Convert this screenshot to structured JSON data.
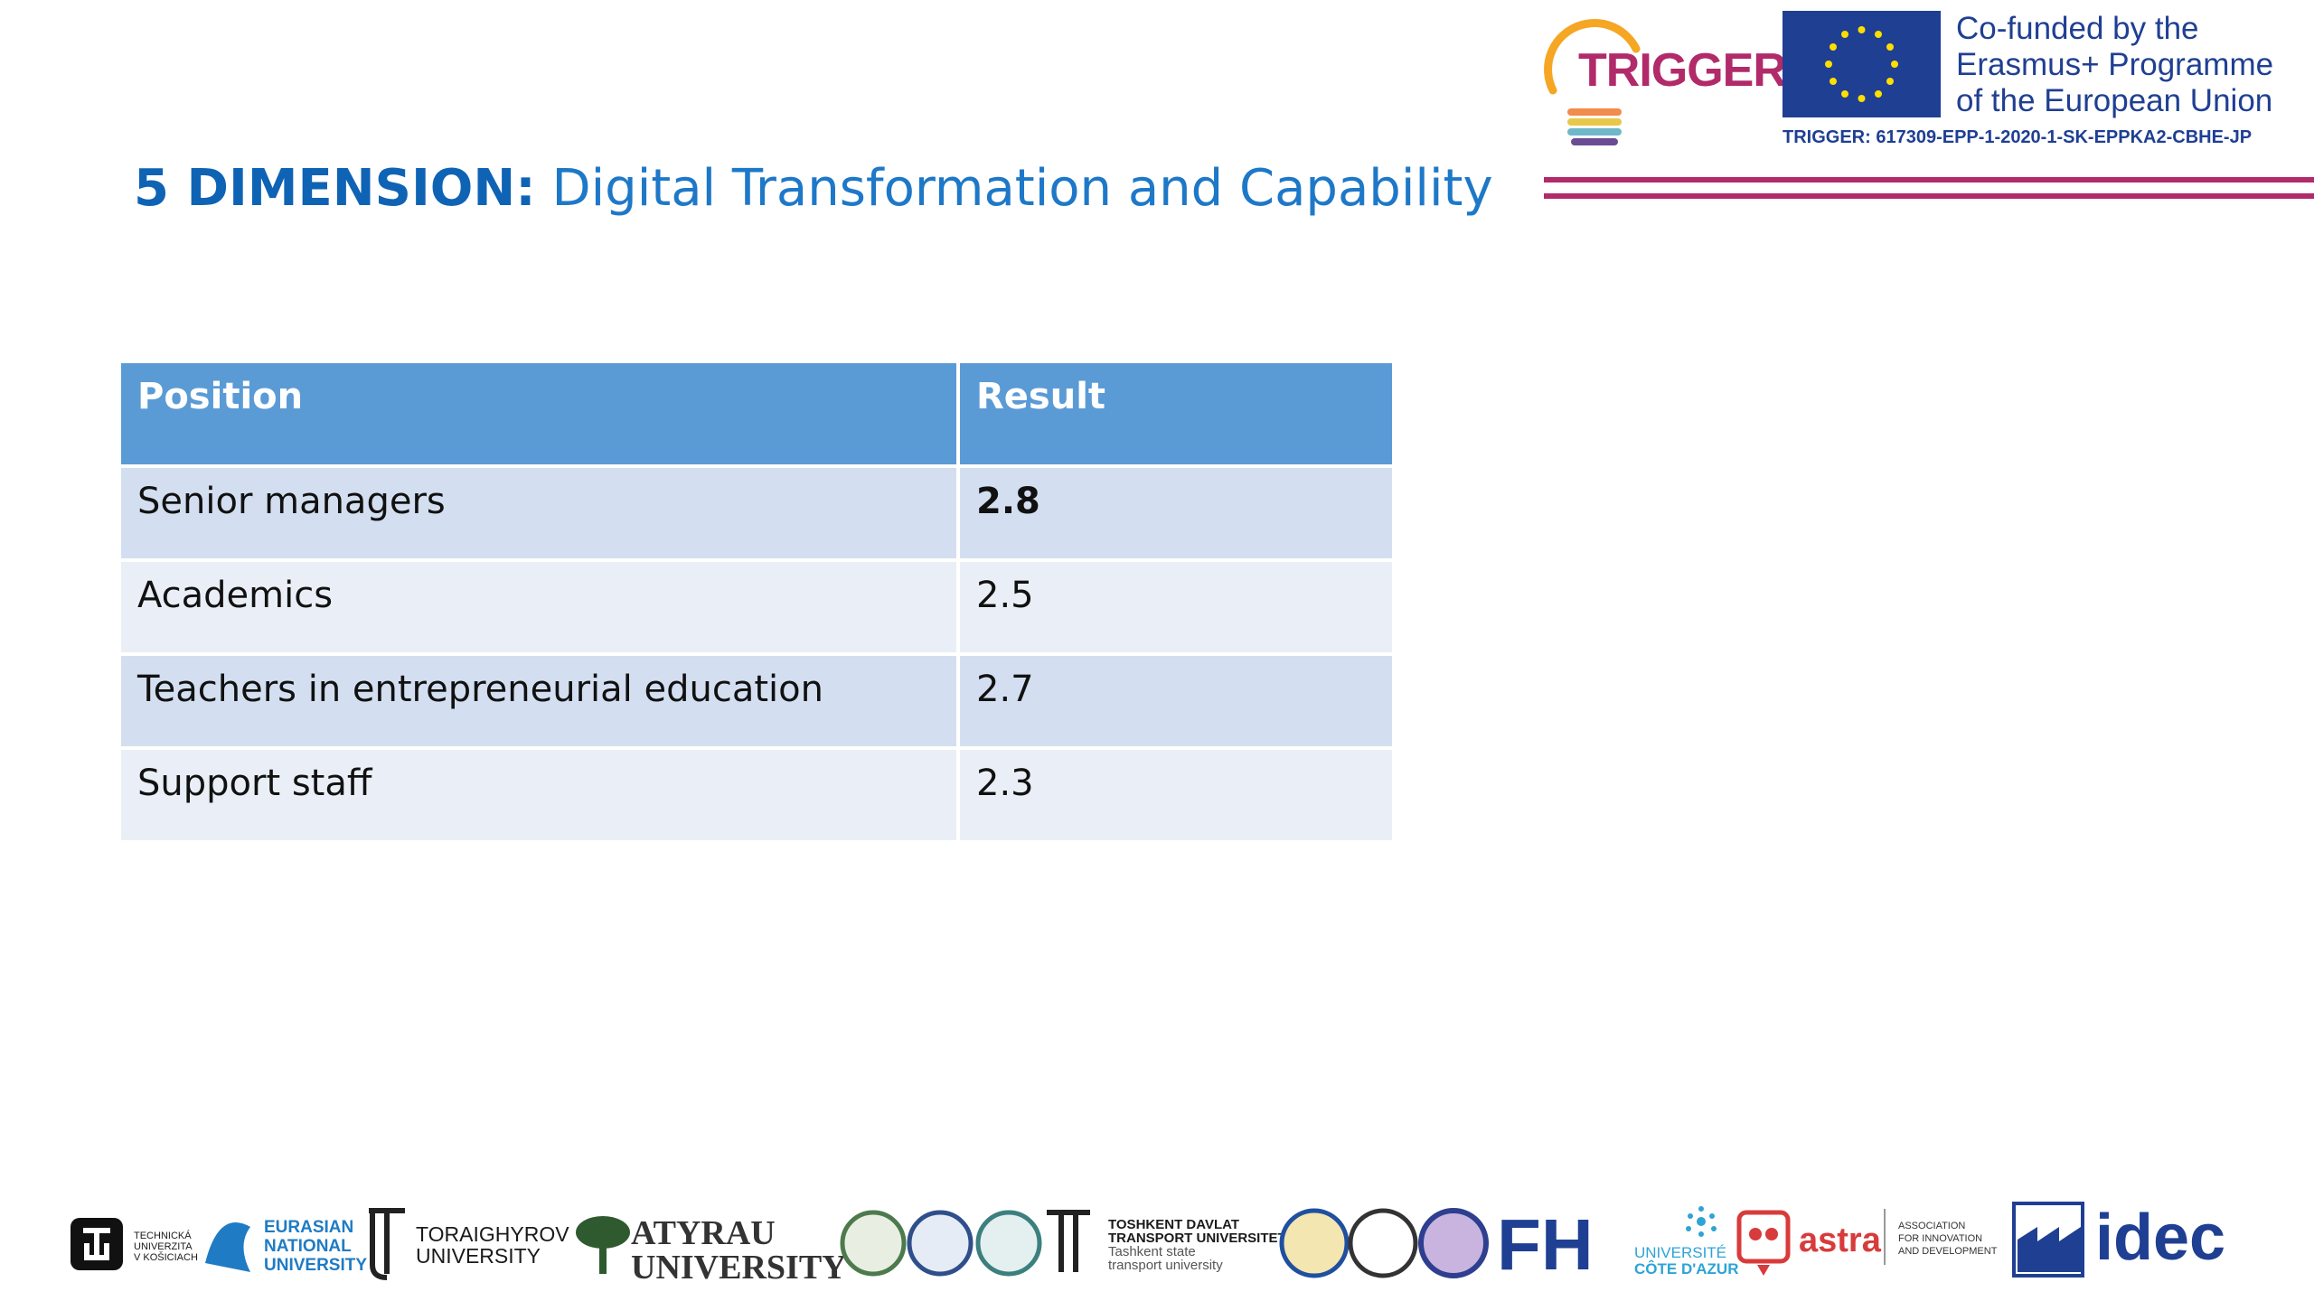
{
  "title": {
    "dimension": "5 DIMENSION:",
    "subtitle": "Digital Transformation and Capability"
  },
  "header": {
    "trigger_label": "TRIGGER",
    "cofunded_lines": [
      "Co-funded by the",
      "Erasmus+ Programme",
      "of the European Union"
    ],
    "project_code": "TRIGGER: 617309-EPP-1-2020-1-SK-EPPKA2-CBHE-JP"
  },
  "table": {
    "headers": [
      "Position",
      "Result"
    ],
    "rows": [
      {
        "position": "Senior managers",
        "result": "2.8"
      },
      {
        "position": "Academics",
        "result": "2.5"
      },
      {
        "position": "Teachers in entrepreneurial education",
        "result": "2.7"
      },
      {
        "position": "Support staff",
        "result": "2.3"
      }
    ]
  },
  "footer": {
    "partners": {
      "tuke": "TECHNICKÁ UNIVERZITA V KOŠICIACH",
      "eurasian": [
        "EURASIAN",
        "NATIONAL",
        "UNIVERSITY"
      ],
      "toraighyrov": [
        "TORAIGHYROV",
        "UNIVERSITY"
      ],
      "atyrau": [
        "ATYRAU",
        "UNIVERSITY"
      ],
      "tashkent": [
        "TOSHKENT DAVLAT",
        "TRANSPORT UNIVERSITETI",
        "Tashkent state",
        "transport university"
      ],
      "fh": "FH",
      "cote": [
        "UNIVERSITÉ",
        "CÔTE D'AZUR"
      ],
      "astra": "astra",
      "association": [
        "ASSOCIATION",
        "FOR INNOVATION",
        "AND DEVELOPMENT"
      ],
      "idec": "idec"
    },
    "colors": {
      "eu_blue": "#1f3f93",
      "trigger_magenta": "#b12a6a",
      "table_header": "#5b9bd5"
    }
  }
}
